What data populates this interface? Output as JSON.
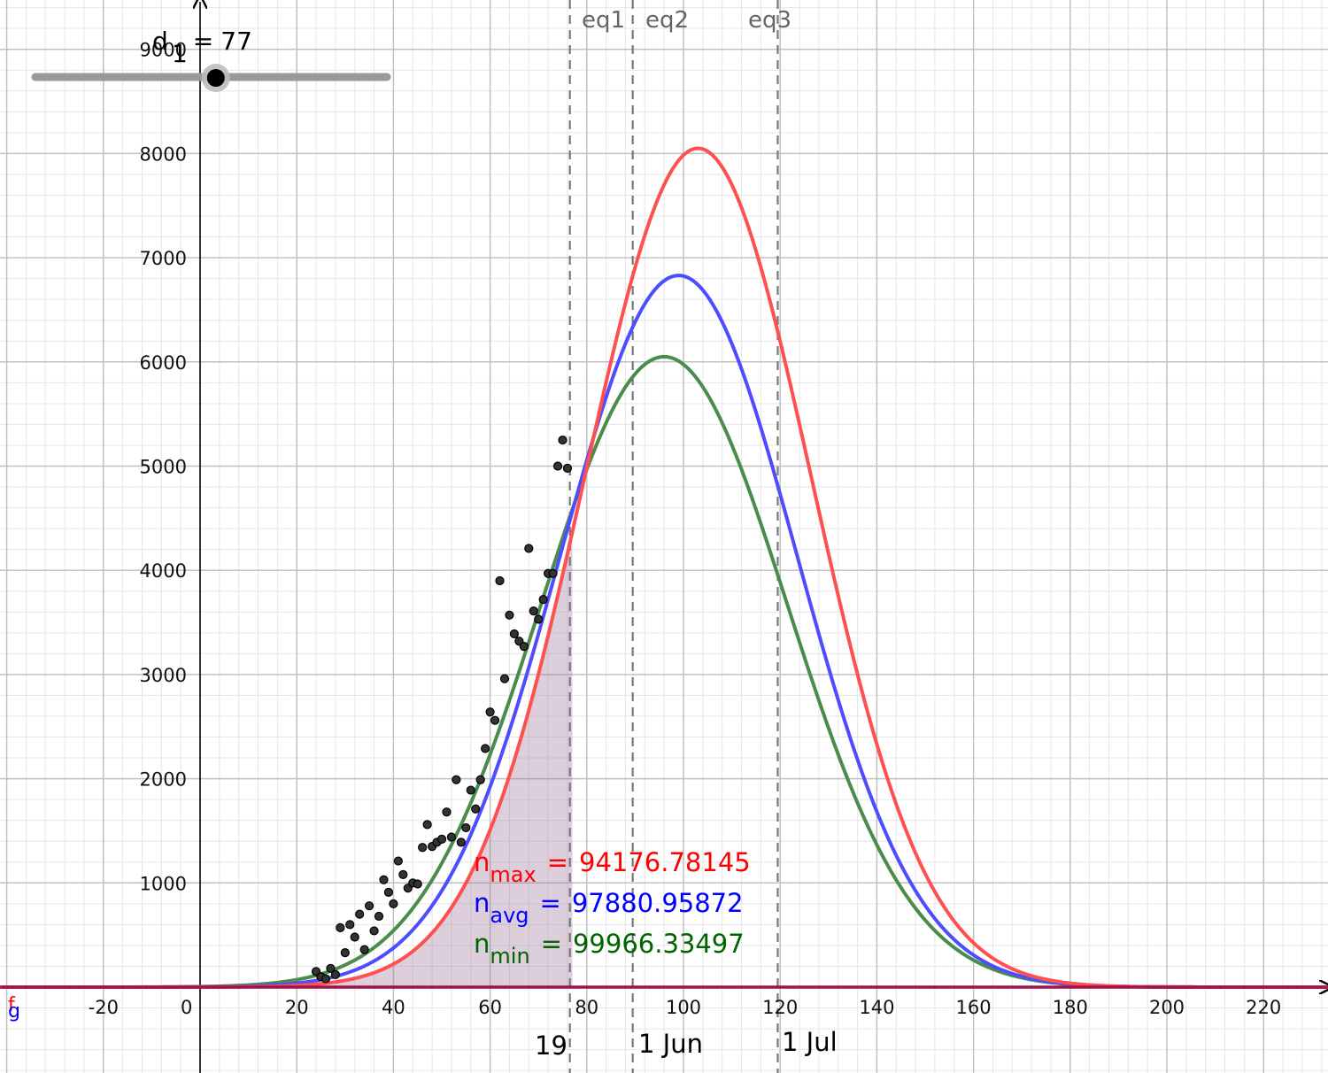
{
  "slider": {
    "name": "d",
    "value": "77",
    "min": 0,
    "max": 150,
    "label_suffix": "1"
  },
  "labels": {
    "eq1": "eq1",
    "eq2": "eq2",
    "eq3": "eq3",
    "date_19": "19",
    "date_jun": "1 Jun",
    "date_jul": "1 Jul",
    "f": "f",
    "g": "g"
  },
  "params": {
    "nmax": {
      "name": "n",
      "sub": "max",
      "value": "94176.78145",
      "color": "#ff0000"
    },
    "navg": {
      "name": "n",
      "sub": "avg",
      "value": "97880.95872",
      "color": "#0000ff"
    },
    "nmin": {
      "name": "n",
      "sub": "min",
      "value": "99966.33497",
      "color": "#006400"
    }
  },
  "chart_data": {
    "type": "line",
    "xlim": [
      -41,
      233
    ],
    "ylim": [
      -800,
      9500
    ],
    "x_ticks": [
      -20,
      0,
      20,
      40,
      60,
      80,
      100,
      120,
      140,
      160,
      180,
      200,
      220
    ],
    "y_ticks": [
      1000,
      2000,
      3000,
      4000,
      5000,
      6000,
      7000,
      8000,
      9000
    ],
    "x_tick_labels": [
      "-20",
      "0",
      "20",
      "40",
      "60",
      "80",
      "100",
      "120",
      "140",
      "160",
      "180",
      "200",
      "220"
    ],
    "y_tick_labels": [
      "1000",
      "2000",
      "3000",
      "4000",
      "5000",
      "6000",
      "7000",
      "8000",
      "9000"
    ],
    "grid": true,
    "vertical_lines": [
      {
        "x": 76.5,
        "label": "19"
      },
      {
        "x": 89.5,
        "label": "1 Jun"
      },
      {
        "x": 119.5,
        "label": "1 Jul"
      }
    ],
    "equation_markers": [
      {
        "x": 80.5,
        "label": "eq1"
      },
      {
        "x": 89.5,
        "label": "eq2"
      },
      {
        "x": 119.5,
        "label": "eq3"
      }
    ],
    "shaded_region": {
      "from": 0,
      "to": 77,
      "color": "#9b7497"
    },
    "series": [
      {
        "color": "#ff5050",
        "peak_x": 103,
        "peak_y": 8050,
        "sigma": 23.5
      },
      {
        "color": "#4d4dff",
        "peak_x": 99,
        "peak_y": 6830,
        "sigma": 24.5
      },
      {
        "color": "#4a8c4a",
        "peak_x": 96,
        "peak_y": 6050,
        "sigma": 25.5
      }
    ],
    "scatter": [
      [
        24,
        150
      ],
      [
        25,
        100
      ],
      [
        26,
        80
      ],
      [
        27,
        180
      ],
      [
        28,
        120
      ],
      [
        29,
        570
      ],
      [
        30,
        330
      ],
      [
        31,
        600
      ],
      [
        32,
        480
      ],
      [
        33,
        700
      ],
      [
        34,
        360
      ],
      [
        35,
        780
      ],
      [
        36,
        540
      ],
      [
        37,
        680
      ],
      [
        38,
        1030
      ],
      [
        39,
        910
      ],
      [
        40,
        800
      ],
      [
        41,
        1210
      ],
      [
        42,
        1080
      ],
      [
        43,
        950
      ],
      [
        44,
        1000
      ],
      [
        45,
        990
      ],
      [
        46,
        1340
      ],
      [
        47,
        1560
      ],
      [
        48,
        1350
      ],
      [
        49,
        1390
      ],
      [
        50,
        1420
      ],
      [
        51,
        1680
      ],
      [
        52,
        1440
      ],
      [
        53,
        1990
      ],
      [
        54,
        1390
      ],
      [
        55,
        1530
      ],
      [
        56,
        1890
      ],
      [
        57,
        1710
      ],
      [
        58,
        1990
      ],
      [
        59,
        2290
      ],
      [
        60,
        2640
      ],
      [
        61,
        2560
      ],
      [
        62,
        3900
      ],
      [
        63,
        2960
      ],
      [
        64,
        3570
      ],
      [
        65,
        3390
      ],
      [
        66,
        3320
      ],
      [
        67,
        3270
      ],
      [
        68,
        4210
      ],
      [
        69,
        3610
      ],
      [
        70,
        3530
      ],
      [
        71,
        3720
      ],
      [
        72,
        3970
      ],
      [
        73,
        3970
      ],
      [
        74,
        5000
      ],
      [
        75,
        5250
      ],
      [
        76,
        4980
      ]
    ]
  }
}
